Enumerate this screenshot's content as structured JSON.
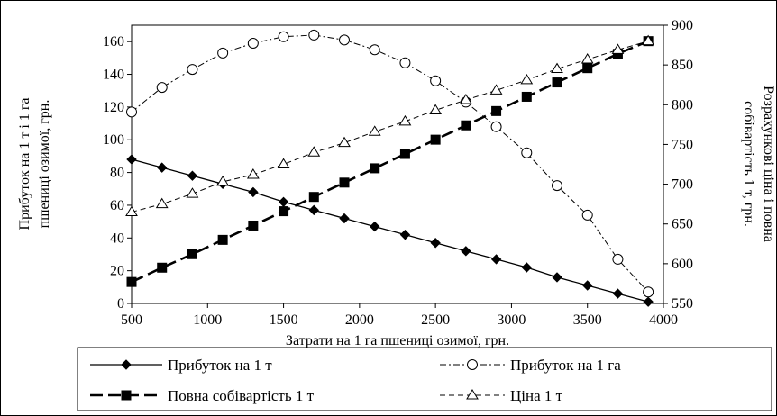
{
  "chart_data": {
    "type": "line",
    "xlabel": "Затрати на 1 га пшениці озимої, грн.",
    "ylabel_left_line1": "Прибуток на 1 т і 1 га",
    "ylabel_left_line2": "пшениці озимої, грн.",
    "ylabel_right_line1": "Розрахункові ціна і повна",
    "ylabel_right_line2": "собівартість 1 т, грн.",
    "xlim": [
      500,
      4000
    ],
    "ylim_left": [
      0,
      170
    ],
    "ylim_right": [
      550,
      900
    ],
    "x_ticks": [
      500,
      1000,
      1500,
      2000,
      2500,
      3000,
      3500,
      4000
    ],
    "y_left_ticks": [
      0,
      20,
      40,
      60,
      80,
      100,
      120,
      140,
      160
    ],
    "y_right_ticks": [
      550,
      600,
      650,
      700,
      750,
      800,
      850,
      900
    ],
    "grid": false,
    "legend_position": "bottom",
    "x": [
      500,
      700,
      900,
      1100,
      1300,
      1500,
      1700,
      1900,
      2100,
      2300,
      2500,
      2700,
      2900,
      3100,
      3300,
      3500,
      3700,
      3900
    ],
    "series": [
      {
        "name": "Прибуток на 1 т",
        "axis": "left",
        "marker": "diamond",
        "line": "solid",
        "values": [
          88,
          83,
          78,
          73,
          68,
          62,
          57,
          52,
          47,
          42,
          37,
          32,
          27,
          22,
          16,
          11,
          6,
          1
        ]
      },
      {
        "name": "Прибуток на 1 га",
        "axis": "left",
        "marker": "circle",
        "line": "dashdot",
        "values": [
          117,
          132,
          143,
          153,
          159,
          163,
          164,
          161,
          155,
          147,
          136,
          123,
          108,
          92,
          72,
          54,
          27,
          7
        ]
      },
      {
        "name": "Повна собівартість 1 т",
        "axis": "right",
        "marker": "square",
        "line": "longdash",
        "values": [
          577,
          595,
          612,
          630,
          648,
          666,
          684,
          702,
          720,
          738,
          756,
          774,
          792,
          810,
          828,
          846,
          864,
          880
        ]
      },
      {
        "name": "Ціна 1 т",
        "axis": "right",
        "marker": "triangle",
        "line": "dash",
        "values": [
          665,
          675,
          688,
          703,
          712,
          725,
          740,
          752,
          766,
          779,
          793,
          806,
          818,
          831,
          845,
          857,
          869,
          880
        ]
      }
    ]
  }
}
